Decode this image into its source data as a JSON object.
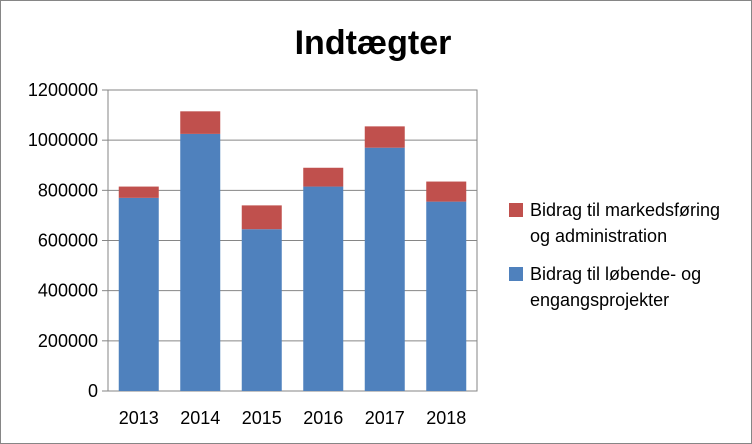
{
  "chart_data": {
    "type": "bar",
    "stacked": true,
    "title": "Indtægter",
    "categories": [
      "2013",
      "2014",
      "2015",
      "2016",
      "2017",
      "2018"
    ],
    "series": [
      {
        "name": "Bidrag til løbende- og engangsprojekter",
        "legend_lines": [
          "Bidrag til løbende- og",
          "engangsprojekter"
        ],
        "color": "#4F81BD",
        "values": [
          770000,
          1025000,
          645000,
          815000,
          970000,
          755000
        ]
      },
      {
        "name": "Bidrag til markedsføring og administration",
        "legend_lines": [
          "Bidrag til markedsføring",
          "og administration"
        ],
        "color": "#C0504D",
        "values": [
          45000,
          90000,
          95000,
          75000,
          85000,
          80000
        ]
      }
    ],
    "ylim": [
      0,
      1200000
    ],
    "yticks": [
      "0",
      "200000",
      "400000",
      "600000",
      "800000",
      "1000000",
      "1200000"
    ],
    "grid": true,
    "legend": "right"
  }
}
